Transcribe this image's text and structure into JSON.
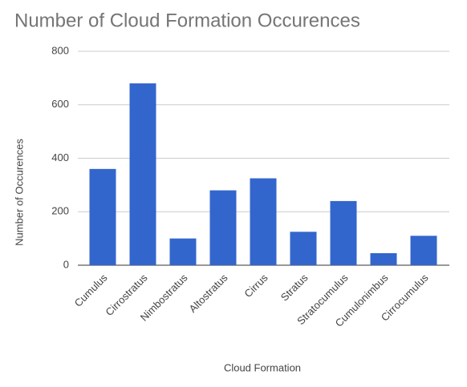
{
  "chart_data": {
    "type": "bar",
    "title": "Number of Cloud Formation Occurences",
    "x_label": "Cloud Formation",
    "y_label": "Number of Occurences",
    "categories": [
      "Cumulus",
      "Cirrostratus",
      "Nimbostratus",
      "Altostratus",
      "Cirrus",
      "Stratus",
      "Stratocumulus",
      "Cumulonimbus",
      "Cirrocumulus"
    ],
    "values": [
      360,
      680,
      100,
      280,
      325,
      125,
      240,
      45,
      110
    ],
    "color": "#3366cc",
    "ylim": [
      0,
      800
    ],
    "yticks": [
      0,
      200,
      400,
      600,
      800
    ],
    "grid": true
  }
}
